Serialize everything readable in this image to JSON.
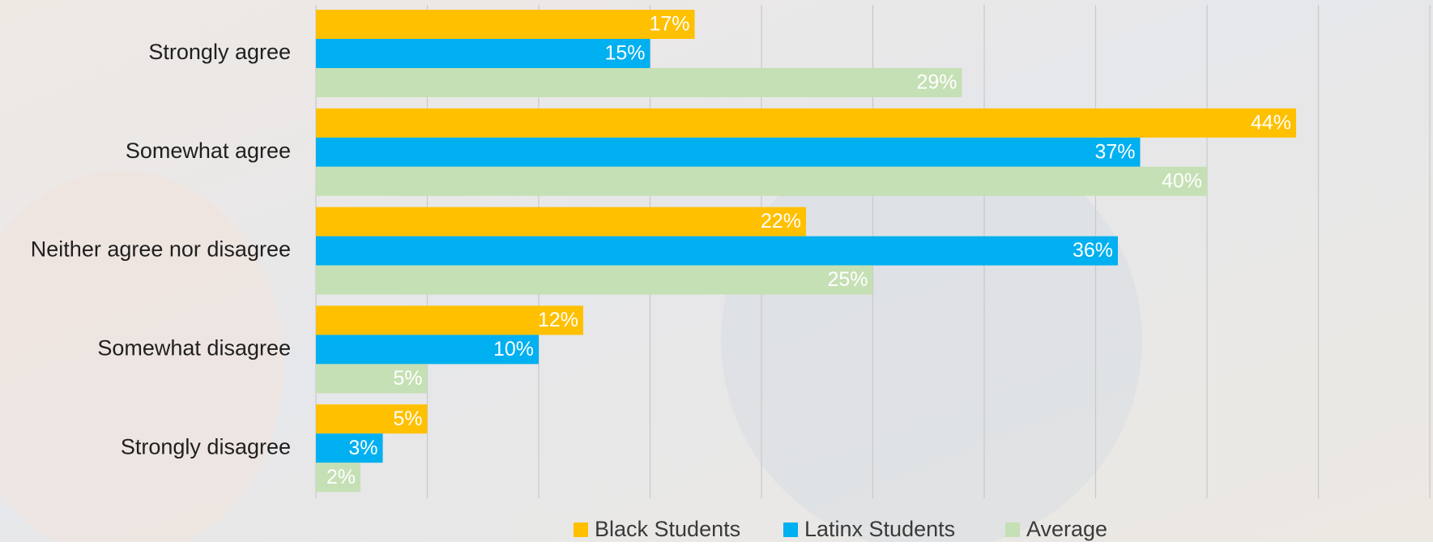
{
  "chart_data": {
    "type": "hbar",
    "categories": [
      "Strongly agree",
      "Somewhat agree",
      "Neither agree nor disagree",
      "Somewhat disagree",
      "Strongly disagree"
    ],
    "series": [
      {
        "name": "Black Students",
        "color": "#FFC000",
        "values": [
          17,
          44,
          22,
          12,
          5
        ],
        "value_labels": [
          "17%",
          "44%",
          "22%",
          "12%",
          "5%"
        ]
      },
      {
        "name": "Latinx Students",
        "color": "#00B0F0",
        "values": [
          15,
          37,
          36,
          10,
          3
        ],
        "value_labels": [
          "15%",
          "37%",
          "36%",
          "10%",
          "3%"
        ]
      },
      {
        "name": "Average",
        "color": "#C5E0B4",
        "values": [
          29,
          40,
          25,
          5,
          2
        ],
        "value_labels": [
          "29%",
          "40%",
          "25%",
          "5%",
          "2%"
        ]
      }
    ],
    "xlim": [
      0,
      50
    ],
    "xticks": [
      0,
      5,
      10,
      15,
      20,
      25,
      30,
      35,
      40,
      45,
      50
    ],
    "grid": true,
    "legend": "bottom"
  }
}
